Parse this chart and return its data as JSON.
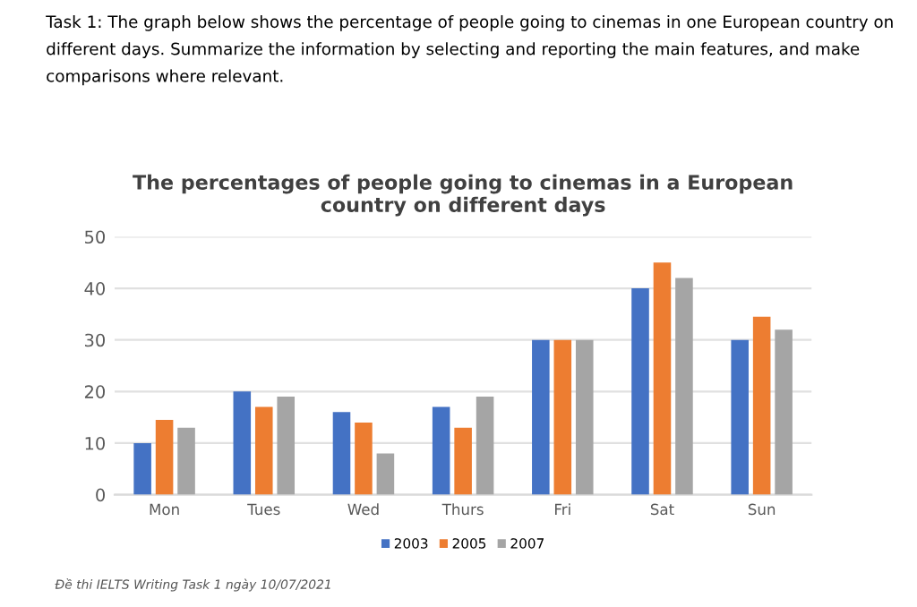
{
  "chart_data": {
    "type": "bar",
    "title": "The percentages of people going to cinemas in a European\ncountry on different days",
    "categories": [
      "Mon",
      "Tues",
      "Wed",
      "Thurs",
      "Fri",
      "Sat",
      "Sun"
    ],
    "series": [
      {
        "name": "2003",
        "color": "#4472c4",
        "values": [
          10,
          20,
          16,
          17,
          30,
          40,
          30
        ]
      },
      {
        "name": "2005",
        "color": "#ed7d31",
        "values": [
          14.5,
          17,
          14,
          13,
          30,
          45,
          34.5
        ]
      },
      {
        "name": "2007",
        "color": "#a5a5a5",
        "values": [
          13,
          19,
          8,
          19,
          30,
          42,
          32
        ]
      }
    ],
    "ylim": [
      0,
      50
    ],
    "yticks": [
      0,
      10,
      20,
      30,
      40,
      50
    ],
    "grid": "y",
    "legend": "bottom",
    "annotations": [
      "Task 1: The graph below shows the percentage of people going to cinemas in one European country on different days. Summarize the information by selecting and reporting the main features, and make comparisons where relevant.",
      "Đề thi IELTS Writing Task 1 ngày 10/07/2021"
    ]
  }
}
